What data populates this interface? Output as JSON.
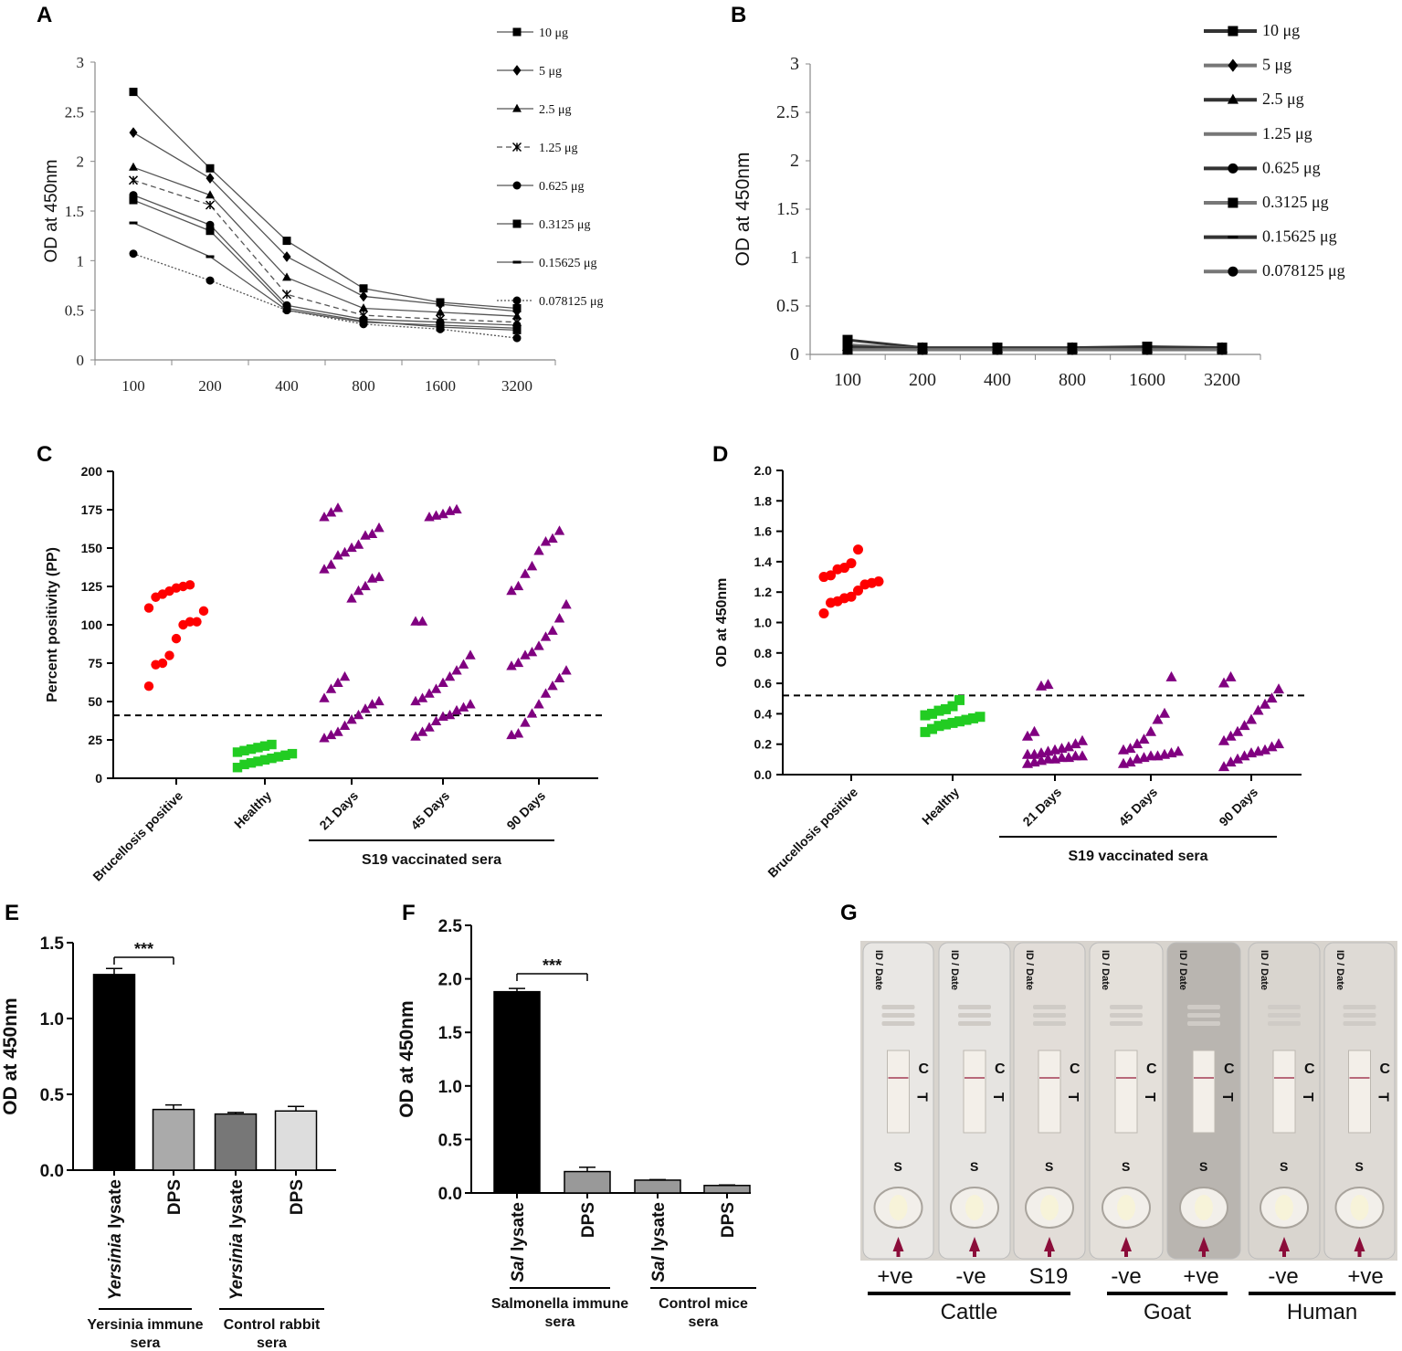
{
  "panel_labels": [
    "A",
    "B",
    "C",
    "D",
    "E",
    "F",
    "G"
  ],
  "chart_data": [
    {
      "panel": "A",
      "type": "line",
      "ylabel": "OD at 450nm",
      "ylim": [
        0,
        3
      ],
      "yticks": [
        "0",
        "0.5",
        "1",
        "1.5",
        "2",
        "2.5",
        "3"
      ],
      "categories": [
        "100",
        "200",
        "400",
        "800",
        "1600",
        "3200"
      ],
      "series": [
        {
          "name": "10 μg",
          "marker": "square",
          "dash": "solid",
          "values": [
            2.7,
            1.93,
            1.2,
            0.72,
            0.58,
            0.52
          ]
        },
        {
          "name": "5 μg",
          "marker": "diamond",
          "dash": "solid",
          "values": [
            2.29,
            1.83,
            1.04,
            0.64,
            0.56,
            0.49
          ]
        },
        {
          "name": "2.5 μg",
          "marker": "triangle",
          "dash": "solid",
          "values": [
            1.94,
            1.66,
            0.83,
            0.52,
            0.48,
            0.44
          ]
        },
        {
          "name": "1.25 μg",
          "marker": "star",
          "dash": "dashed",
          "values": [
            1.81,
            1.56,
            0.66,
            0.45,
            0.41,
            0.38
          ]
        },
        {
          "name": "0.625 μg",
          "marker": "circle",
          "dash": "solid",
          "values": [
            1.66,
            1.36,
            0.55,
            0.41,
            0.38,
            0.35
          ]
        },
        {
          "name": "0.3125 μg",
          "marker": "square",
          "dash": "solid",
          "values": [
            1.61,
            1.3,
            0.52,
            0.39,
            0.33,
            0.3
          ]
        },
        {
          "name": "0.15625 μg",
          "marker": "dash",
          "dash": "solid",
          "values": [
            1.38,
            1.04,
            0.5,
            0.38,
            0.35,
            0.32
          ]
        },
        {
          "name": "0.078125 μg",
          "marker": "circle",
          "dash": "dotted",
          "values": [
            1.07,
            0.8,
            0.5,
            0.36,
            0.31,
            0.22
          ]
        }
      ]
    },
    {
      "panel": "B",
      "type": "line",
      "ylabel": "OD at 450nm",
      "ylim": [
        0,
        3
      ],
      "yticks": [
        "0",
        "0.5",
        "1",
        "1.5",
        "2",
        "2.5",
        "3"
      ],
      "categories": [
        "100",
        "200",
        "400",
        "800",
        "1600",
        "3200"
      ],
      "series": [
        {
          "name": "10 μg",
          "marker": "square",
          "values": [
            0.15,
            0.07,
            0.07,
            0.07,
            0.08,
            0.07
          ]
        },
        {
          "name": "5 μg",
          "marker": "diamond",
          "values": [
            0.1,
            0.06,
            0.06,
            0.06,
            0.06,
            0.06
          ]
        },
        {
          "name": "2.5 μg",
          "marker": "triangle",
          "values": [
            0.08,
            0.06,
            0.06,
            0.06,
            0.06,
            0.06
          ]
        },
        {
          "name": "1.25 μg",
          "marker": "none",
          "values": [
            0.06,
            0.05,
            0.05,
            0.05,
            0.05,
            0.05
          ]
        },
        {
          "name": "0.625 μg",
          "marker": "circle",
          "values": [
            0.06,
            0.05,
            0.05,
            0.05,
            0.05,
            0.05
          ]
        },
        {
          "name": "0.3125 μg",
          "marker": "square",
          "values": [
            0.05,
            0.05,
            0.05,
            0.05,
            0.05,
            0.05
          ]
        },
        {
          "name": "0.15625 μg",
          "marker": "dash",
          "values": [
            0.05,
            0.05,
            0.05,
            0.05,
            0.05,
            0.05
          ]
        },
        {
          "name": "0.078125 μg",
          "marker": "circle",
          "values": [
            0.05,
            0.05,
            0.05,
            0.05,
            0.05,
            0.05
          ]
        }
      ]
    },
    {
      "panel": "C",
      "type": "scatter",
      "ylabel": "Percent positivity (PP)",
      "ylim": [
        0,
        200
      ],
      "yticks": [
        "0",
        "25",
        "50",
        "75",
        "100",
        "125",
        "150",
        "175",
        "200"
      ],
      "categories": [
        "Brucellosis positive",
        "Healthy",
        "21 Days",
        "45 Days",
        "90 Days"
      ],
      "group_label": "S19 vaccinated sera",
      "cutoff": 41,
      "series": [
        {
          "name": "Brucellosis positive",
          "color": "#ff0000",
          "marker": "circle",
          "values": [
            60,
            74,
            75,
            80,
            91,
            100,
            102,
            102,
            109,
            111,
            118,
            120,
            122,
            124,
            125,
            126
          ]
        },
        {
          "name": "Healthy",
          "color": "#22cc22",
          "marker": "square",
          "values": [
            7,
            9,
            10,
            11,
            12,
            13,
            14,
            15,
            16,
            17,
            18,
            19,
            20,
            21,
            22
          ]
        },
        {
          "name": "21 Days",
          "color": "#800080",
          "marker": "triangle",
          "values": [
            26,
            28,
            30,
            34,
            38,
            41,
            45,
            48,
            50,
            52,
            58,
            62,
            66,
            117,
            122,
            125,
            130,
            131,
            136,
            139,
            145,
            147,
            150,
            152,
            158,
            159,
            163,
            170,
            173,
            176
          ]
        },
        {
          "name": "45 Days",
          "color": "#800080",
          "marker": "triangle",
          "values": [
            27,
            30,
            33,
            37,
            40,
            41,
            44,
            46,
            48,
            50,
            52,
            55,
            58,
            62,
            66,
            70,
            74,
            80,
            102,
            102,
            170,
            171,
            172,
            174,
            175
          ]
        },
        {
          "name": "90 Days",
          "color": "#800080",
          "marker": "triangle",
          "values": [
            28,
            29,
            36,
            42,
            48,
            55,
            60,
            65,
            70,
            73,
            75,
            80,
            82,
            86,
            92,
            96,
            104,
            113,
            122,
            125,
            133,
            138,
            148,
            154,
            156,
            161
          ]
        }
      ]
    },
    {
      "panel": "D",
      "type": "scatter",
      "ylabel": "OD at 450nm",
      "ylim": [
        0,
        2.0
      ],
      "yticks": [
        "0.0",
        "0.2",
        "0.4",
        "0.6",
        "0.8",
        "1.0",
        "1.2",
        "1.4",
        "1.6",
        "1.8",
        "2.0"
      ],
      "categories": [
        "Brucellosis positive",
        "Healthy",
        "21 Days",
        "45 Days",
        "90 Days"
      ],
      "group_label": "S19 vaccinated sera",
      "cutoff": 0.52,
      "series": [
        {
          "name": "Brucellosis positive",
          "color": "#ff0000",
          "marker": "circle",
          "values": [
            1.06,
            1.13,
            1.14,
            1.16,
            1.17,
            1.21,
            1.25,
            1.26,
            1.27,
            1.3,
            1.31,
            1.35,
            1.36,
            1.39,
            1.48
          ]
        },
        {
          "name": "Healthy",
          "color": "#22cc22",
          "marker": "square",
          "values": [
            0.28,
            0.3,
            0.32,
            0.33,
            0.34,
            0.35,
            0.36,
            0.37,
            0.38,
            0.39,
            0.4,
            0.42,
            0.43,
            0.45,
            0.49
          ]
        },
        {
          "name": "21 Days",
          "color": "#800080",
          "marker": "triangle",
          "values": [
            0.07,
            0.08,
            0.09,
            0.1,
            0.1,
            0.11,
            0.11,
            0.12,
            0.12,
            0.13,
            0.13,
            0.14,
            0.15,
            0.16,
            0.17,
            0.18,
            0.2,
            0.22,
            0.25,
            0.28,
            0.58,
            0.59
          ]
        },
        {
          "name": "45 Days",
          "color": "#800080",
          "marker": "triangle",
          "values": [
            0.07,
            0.08,
            0.1,
            0.11,
            0.12,
            0.12,
            0.13,
            0.14,
            0.15,
            0.16,
            0.17,
            0.2,
            0.23,
            0.28,
            0.36,
            0.4,
            0.64
          ]
        },
        {
          "name": "90 Days",
          "color": "#800080",
          "marker": "triangle",
          "values": [
            0.05,
            0.08,
            0.1,
            0.12,
            0.14,
            0.15,
            0.16,
            0.18,
            0.2,
            0.22,
            0.25,
            0.28,
            0.32,
            0.36,
            0.42,
            0.46,
            0.5,
            0.56,
            0.6,
            0.64
          ]
        }
      ]
    },
    {
      "panel": "E",
      "type": "bar",
      "ylabel": "OD at 450nm",
      "ylim": [
        0,
        1.5
      ],
      "yticks": [
        "0.0",
        "0.5",
        "1.0",
        "1.5"
      ],
      "categories": [
        "Yersinia lysate",
        "DPS",
        "Yersinia lysate",
        "DPS"
      ],
      "values": [
        1.29,
        0.4,
        0.37,
        0.39
      ],
      "errors": [
        0.04,
        0.03,
        0.01,
        0.03
      ],
      "colors": [
        "#000000",
        "#aaaaaa",
        "#777777",
        "#dddddd"
      ],
      "significance": "***",
      "groups": [
        "Yersinia immune sera",
        "Control rabbit sera"
      ]
    },
    {
      "panel": "F",
      "type": "bar",
      "ylabel": "OD at 450nm",
      "ylim": [
        0,
        2.5
      ],
      "yticks": [
        "0.0",
        "0.5",
        "1.0",
        "1.5",
        "2.0",
        "2.5"
      ],
      "categories": [
        "Sal lysate",
        "DPS",
        "Sal lysate",
        "DPS"
      ],
      "values": [
        1.88,
        0.2,
        0.12,
        0.07
      ],
      "errors": [
        0.03,
        0.04,
        0.005,
        0.005
      ],
      "colors": [
        "#000000",
        "#999999",
        "#999999",
        "#999999"
      ],
      "significance": "***",
      "groups": [
        "Salmonella immune sera",
        "Control mice sera"
      ]
    }
  ],
  "photo_g": {
    "strip_labels": [
      "+ve",
      "-ve",
      "S19",
      "-ve",
      "+ve",
      "-ve",
      "+ve"
    ],
    "groups": [
      "Cattle",
      "Goat",
      "Human"
    ],
    "strip_text": [
      "ID / Date",
      "C",
      "T",
      "S"
    ]
  }
}
